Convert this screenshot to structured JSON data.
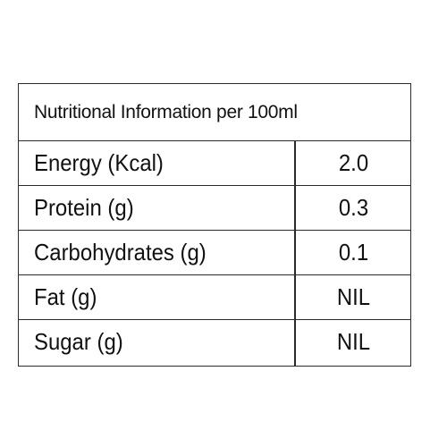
{
  "title": "Nutritional Information per 100ml",
  "rows": [
    {
      "label": "Energy (Kcal)",
      "value": "2.0"
    },
    {
      "label": "Protein (g)",
      "value": "0.3"
    },
    {
      "label": "Carbohydrates (g)",
      "value": "0.1"
    },
    {
      "label": "Fat (g)",
      "value": "NIL"
    },
    {
      "label": "Sugar (g)",
      "value": "NIL"
    }
  ]
}
